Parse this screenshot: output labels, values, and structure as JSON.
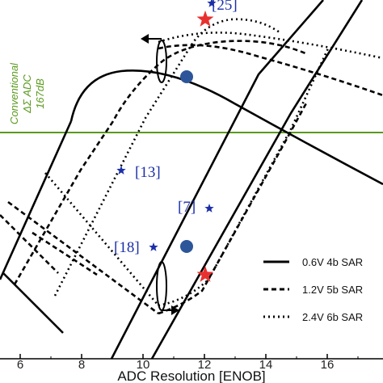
{
  "chart_data": {
    "type": "line",
    "title": "",
    "xlabel": "ADC Resolution [ENOB]",
    "ylabel": "",
    "xlim": [
      5.4,
      17.8
    ],
    "x_ticks": [
      "6",
      "8",
      "10",
      "12",
      "14",
      "16"
    ],
    "grid": false,
    "legend_position": "bottom-right",
    "legend": [
      {
        "label": "0.6V 4b SAR",
        "style": "solid"
      },
      {
        "label": "1.2V 5b SAR",
        "style": "dashed"
      },
      {
        "label": "2.4V 6b SAR",
        "style": "dotted"
      }
    ],
    "reference_line": {
      "label_lines": [
        "Conventional",
        "ΔΣ ADC",
        "167dB"
      ],
      "color": "#5a9a1e"
    },
    "citations": [
      {
        "label": "[25]",
        "enob": 12.1
      },
      {
        "label": "[13]",
        "enob": 9.3
      },
      {
        "label": "[7]",
        "enob": 12.1
      },
      {
        "label": "[18]",
        "enob": 9.9
      }
    ],
    "optimum_markers": [
      {
        "kind": "circle",
        "color": "#2d5599"
      },
      {
        "kind": "circle",
        "color": "#2d5599"
      }
    ],
    "star_markers": [
      {
        "kind": "star",
        "color": "#e8312f"
      },
      {
        "kind": "star",
        "color": "#e8312f"
      }
    ]
  }
}
